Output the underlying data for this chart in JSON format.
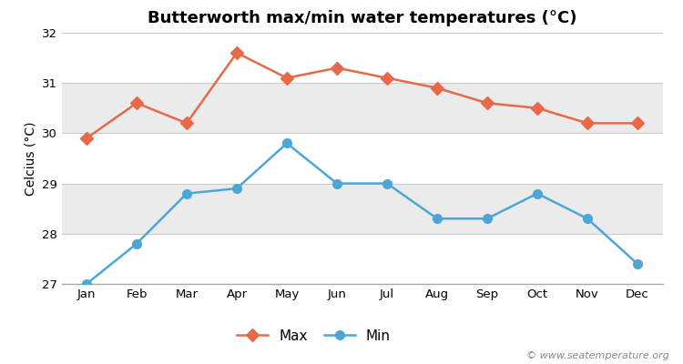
{
  "title": "Butterworth max/min water temperatures (°C)",
  "ylabel": "Celcius (°C)",
  "months": [
    "Jan",
    "Feb",
    "Mar",
    "Apr",
    "May",
    "Jun",
    "Jul",
    "Aug",
    "Sep",
    "Oct",
    "Nov",
    "Dec"
  ],
  "max_temps": [
    29.9,
    30.6,
    30.2,
    31.6,
    31.1,
    31.3,
    31.1,
    30.9,
    30.6,
    30.5,
    30.2,
    30.2
  ],
  "min_temps": [
    27.0,
    27.8,
    28.8,
    28.9,
    29.8,
    29.0,
    29.0,
    28.3,
    28.3,
    28.8,
    28.3,
    27.4
  ],
  "max_color": "#e8694a",
  "min_color": "#4da6d6",
  "ylim": [
    27,
    32
  ],
  "yticks": [
    27,
    28,
    29,
    30,
    31,
    32
  ],
  "bg_color": "#ffffff",
  "band_colors": [
    "#ffffff",
    "#ebebeb",
    "#ffffff",
    "#ebebeb",
    "#ffffff"
  ],
  "watermark": "© www.seatemperature.org",
  "title_fontsize": 13,
  "label_fontsize": 10,
  "tick_fontsize": 9.5,
  "watermark_fontsize": 8,
  "legend_fontsize": 11
}
